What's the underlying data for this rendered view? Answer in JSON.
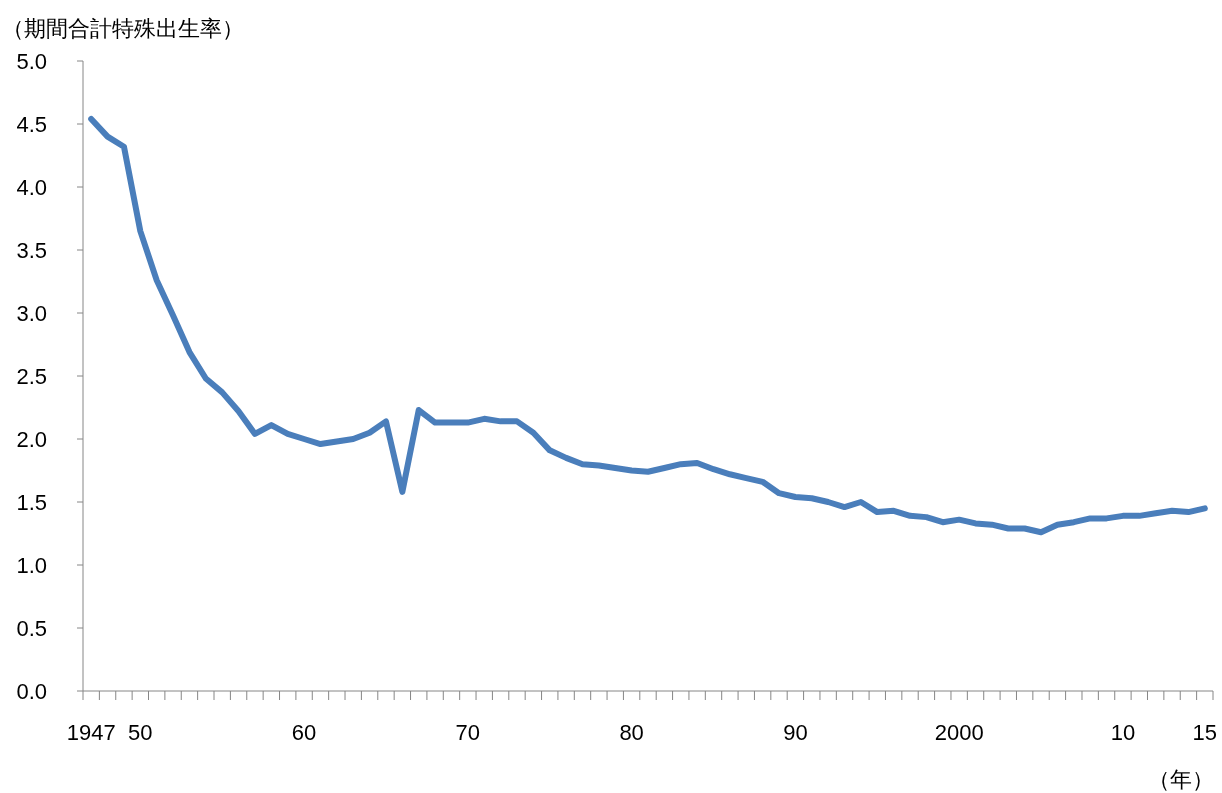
{
  "chart_data": {
    "type": "line",
    "ylabel": "（期間合計特殊出生率）",
    "xlabel": "（年）",
    "categories": [
      "1947",
      null,
      null,
      "50",
      null,
      null,
      null,
      null,
      null,
      null,
      null,
      null,
      null,
      "60",
      null,
      null,
      null,
      null,
      null,
      null,
      null,
      null,
      null,
      "70",
      null,
      null,
      null,
      null,
      null,
      null,
      null,
      null,
      null,
      "80",
      null,
      null,
      null,
      null,
      null,
      null,
      null,
      null,
      null,
      "90",
      null,
      null,
      null,
      null,
      null,
      null,
      null,
      null,
      null,
      "2000",
      null,
      null,
      null,
      null,
      null,
      null,
      null,
      null,
      null,
      "10",
      null,
      null,
      null,
      null,
      "15"
    ],
    "series": [
      {
        "color": "#4a7ebb",
        "values": [
          4.54,
          4.4,
          4.32,
          3.65,
          3.26,
          2.98,
          2.69,
          2.48,
          2.37,
          2.22,
          2.04,
          2.11,
          2.04,
          2.0,
          1.96,
          1.98,
          2.0,
          2.05,
          2.14,
          1.58,
          2.23,
          2.13,
          2.13,
          2.13,
          2.16,
          2.14,
          2.14,
          2.05,
          1.91,
          1.85,
          1.8,
          1.79,
          1.77,
          1.75,
          1.74,
          1.77,
          1.8,
          1.81,
          1.76,
          1.72,
          1.69,
          1.66,
          1.57,
          1.54,
          1.53,
          1.5,
          1.46,
          1.5,
          1.42,
          1.43,
          1.39,
          1.38,
          1.34,
          1.36,
          1.33,
          1.32,
          1.29,
          1.29,
          1.26,
          1.32,
          1.34,
          1.37,
          1.37,
          1.39,
          1.39,
          1.41,
          1.43,
          1.42,
          1.45
        ]
      }
    ],
    "ylim": [
      0,
      5
    ],
    "yticks": [
      {
        "value": 0,
        "label": "0.0"
      },
      {
        "value": 0.5,
        "label": "0.5"
      },
      {
        "value": 1,
        "label": "1.0"
      },
      {
        "value": 1.5,
        "label": "1.5"
      },
      {
        "value": 2,
        "label": "2.0"
      },
      {
        "value": 2.5,
        "label": "2.5"
      },
      {
        "value": 3,
        "label": "3.0"
      },
      {
        "value": 3.5,
        "label": "3.5"
      },
      {
        "value": 4,
        "label": "4.0"
      },
      {
        "value": 4.5,
        "label": "4.5"
      },
      {
        "value": 5,
        "label": "5.0"
      }
    ]
  }
}
